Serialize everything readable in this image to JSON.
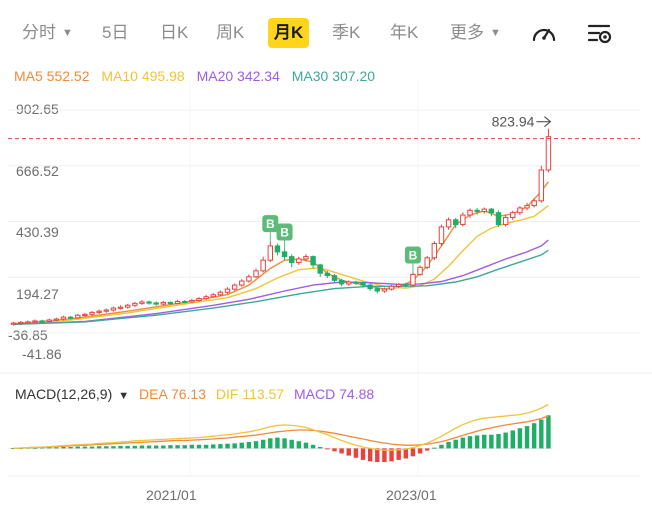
{
  "tabs": [
    {
      "label": "分时",
      "dropdown": true
    },
    {
      "label": "5日"
    },
    {
      "label": "日K"
    },
    {
      "label": "周K"
    },
    {
      "label": "月K",
      "active": true
    },
    {
      "label": "季K"
    },
    {
      "label": "年K"
    },
    {
      "label": "更多",
      "dropdown": true
    }
  ],
  "icons": {
    "speed": "speedometer-icon",
    "settings": "chart-settings-icon"
  },
  "colors": {
    "up": "#e8423f",
    "down": "#1fae67",
    "bg": "#ffffff",
    "ma5": "#f08a3a",
    "ma10": "#f2c33a",
    "ma20": "#a05ce6",
    "ma30": "#3fa79a",
    "dea": "#f08a3a",
    "dif": "#f2c33a",
    "macd": "#a05ce6",
    "ref_line": "#e8423f",
    "marker": "#5dbb7a",
    "accent": "#ffd51c"
  },
  "ma_legend": [
    {
      "key": "ma5",
      "text": "MA5 552.52"
    },
    {
      "key": "ma10",
      "text": "MA10 495.98"
    },
    {
      "key": "ma20",
      "text": "MA20 342.34"
    },
    {
      "key": "ma30",
      "text": "MA30 307.20"
    }
  ],
  "macd_legend": {
    "title": "MACD(12,26,9)",
    "items": [
      {
        "key": "dea",
        "text": "DEA 76.13"
      },
      {
        "key": "dif",
        "text": "DIF 113.57"
      },
      {
        "key": "macd",
        "text": "MACD 74.88"
      }
    ]
  },
  "chart_data": {
    "type": "candlestick",
    "y_tick_labels": [
      "902.65",
      "666.52",
      "430.39",
      "194.27",
      "-36.85",
      "-41.86"
    ],
    "ylim": [
      -36.85,
      902.65
    ],
    "x_tick_labels": [
      "2021/01",
      "2023/01"
    ],
    "high_label": "823.94",
    "high_value": 823.94,
    "marker_label": "B",
    "marker_candles": [
      36,
      38,
      56
    ],
    "candles": [
      {
        "o": 0,
        "c": 5,
        "h": 10,
        "l": -5
      },
      {
        "o": 5,
        "c": 8,
        "h": 14,
        "l": -2
      },
      {
        "o": 8,
        "c": 10,
        "h": 16,
        "l": 2
      },
      {
        "o": 10,
        "c": 14,
        "h": 20,
        "l": 5
      },
      {
        "o": 14,
        "c": 12,
        "h": 19,
        "l": 6
      },
      {
        "o": 12,
        "c": 18,
        "h": 24,
        "l": 8
      },
      {
        "o": 18,
        "c": 22,
        "h": 28,
        "l": 13
      },
      {
        "o": 22,
        "c": 30,
        "h": 36,
        "l": 16
      },
      {
        "o": 30,
        "c": 27,
        "h": 35,
        "l": 20
      },
      {
        "o": 27,
        "c": 38,
        "h": 44,
        "l": 22
      },
      {
        "o": 38,
        "c": 42,
        "h": 48,
        "l": 32
      },
      {
        "o": 42,
        "c": 50,
        "h": 56,
        "l": 36
      },
      {
        "o": 50,
        "c": 55,
        "h": 62,
        "l": 44
      },
      {
        "o": 55,
        "c": 60,
        "h": 66,
        "l": 48
      },
      {
        "o": 60,
        "c": 68,
        "h": 74,
        "l": 54
      },
      {
        "o": 68,
        "c": 72,
        "h": 80,
        "l": 62
      },
      {
        "o": 72,
        "c": 80,
        "h": 86,
        "l": 66
      },
      {
        "o": 80,
        "c": 88,
        "h": 94,
        "l": 72
      },
      {
        "o": 88,
        "c": 94,
        "h": 102,
        "l": 82
      },
      {
        "o": 94,
        "c": 90,
        "h": 100,
        "l": 82
      },
      {
        "o": 90,
        "c": 85,
        "h": 96,
        "l": 78
      },
      {
        "o": 85,
        "c": 92,
        "h": 98,
        "l": 80
      },
      {
        "o": 92,
        "c": 88,
        "h": 96,
        "l": 82
      },
      {
        "o": 88,
        "c": 96,
        "h": 104,
        "l": 84
      },
      {
        "o": 96,
        "c": 94,
        "h": 102,
        "l": 88
      },
      {
        "o": 94,
        "c": 100,
        "h": 108,
        "l": 90
      },
      {
        "o": 100,
        "c": 108,
        "h": 115,
        "l": 94
      },
      {
        "o": 108,
        "c": 116,
        "h": 124,
        "l": 102
      },
      {
        "o": 116,
        "c": 124,
        "h": 132,
        "l": 110
      },
      {
        "o": 124,
        "c": 135,
        "h": 142,
        "l": 118
      },
      {
        "o": 135,
        "c": 148,
        "h": 156,
        "l": 128
      },
      {
        "o": 148,
        "c": 165,
        "h": 172,
        "l": 140
      },
      {
        "o": 165,
        "c": 182,
        "h": 190,
        "l": 158
      },
      {
        "o": 182,
        "c": 200,
        "h": 210,
        "l": 175
      },
      {
        "o": 200,
        "c": 225,
        "h": 235,
        "l": 195
      },
      {
        "o": 225,
        "c": 270,
        "h": 285,
        "l": 218
      },
      {
        "o": 270,
        "c": 330,
        "h": 350,
        "l": 262
      },
      {
        "o": 330,
        "c": 305,
        "h": 340,
        "l": 290
      },
      {
        "o": 305,
        "c": 285,
        "h": 315,
        "l": 270
      },
      {
        "o": 285,
        "c": 260,
        "h": 295,
        "l": 240
      },
      {
        "o": 260,
        "c": 275,
        "h": 285,
        "l": 250
      },
      {
        "o": 275,
        "c": 285,
        "h": 295,
        "l": 265
      },
      {
        "o": 285,
        "c": 250,
        "h": 290,
        "l": 235
      },
      {
        "o": 250,
        "c": 215,
        "h": 255,
        "l": 200
      },
      {
        "o": 215,
        "c": 205,
        "h": 225,
        "l": 195
      },
      {
        "o": 205,
        "c": 185,
        "h": 212,
        "l": 175
      },
      {
        "o": 185,
        "c": 170,
        "h": 192,
        "l": 160
      },
      {
        "o": 170,
        "c": 178,
        "h": 185,
        "l": 162
      },
      {
        "o": 178,
        "c": 175,
        "h": 184,
        "l": 166
      },
      {
        "o": 175,
        "c": 165,
        "h": 180,
        "l": 155
      },
      {
        "o": 165,
        "c": 150,
        "h": 172,
        "l": 140
      },
      {
        "o": 150,
        "c": 140,
        "h": 155,
        "l": 130
      },
      {
        "o": 140,
        "c": 148,
        "h": 155,
        "l": 132
      },
      {
        "o": 148,
        "c": 160,
        "h": 166,
        "l": 142
      },
      {
        "o": 160,
        "c": 168,
        "h": 174,
        "l": 152
      },
      {
        "o": 168,
        "c": 165,
        "h": 175,
        "l": 155
      },
      {
        "o": 165,
        "c": 210,
        "h": 218,
        "l": 160
      },
      {
        "o": 210,
        "c": 240,
        "h": 248,
        "l": 204
      },
      {
        "o": 240,
        "c": 280,
        "h": 288,
        "l": 232
      },
      {
        "o": 280,
        "c": 340,
        "h": 350,
        "l": 270
      },
      {
        "o": 340,
        "c": 410,
        "h": 420,
        "l": 330
      },
      {
        "o": 410,
        "c": 440,
        "h": 450,
        "l": 398
      },
      {
        "o": 440,
        "c": 420,
        "h": 448,
        "l": 405
      },
      {
        "o": 420,
        "c": 460,
        "h": 472,
        "l": 412
      },
      {
        "o": 460,
        "c": 480,
        "h": 488,
        "l": 448
      },
      {
        "o": 480,
        "c": 475,
        "h": 490,
        "l": 462
      },
      {
        "o": 475,
        "c": 485,
        "h": 492,
        "l": 466
      },
      {
        "o": 485,
        "c": 470,
        "h": 490,
        "l": 455
      },
      {
        "o": 470,
        "c": 420,
        "h": 480,
        "l": 410
      },
      {
        "o": 420,
        "c": 450,
        "h": 462,
        "l": 412
      },
      {
        "o": 450,
        "c": 470,
        "h": 478,
        "l": 440
      },
      {
        "o": 470,
        "c": 490,
        "h": 498,
        "l": 460
      },
      {
        "o": 490,
        "c": 500,
        "h": 512,
        "l": 480
      },
      {
        "o": 500,
        "c": 520,
        "h": 530,
        "l": 492
      },
      {
        "o": 520,
        "c": 650,
        "h": 668,
        "l": 512
      },
      {
        "o": 650,
        "c": 790,
        "h": 823.94,
        "l": 640
      }
    ],
    "ma_series": [
      {
        "key": "ma5",
        "values": [
          [
            0,
            2
          ],
          [
            8,
            22
          ],
          [
            16,
            55
          ],
          [
            24,
            92
          ],
          [
            30,
            125
          ],
          [
            33,
            165
          ],
          [
            36,
            235
          ],
          [
            38,
            270
          ],
          [
            40,
            275
          ],
          [
            42,
            262
          ],
          [
            44,
            215
          ],
          [
            46,
            185
          ],
          [
            48,
            172
          ],
          [
            50,
            160
          ],
          [
            52,
            148
          ],
          [
            54,
            155
          ],
          [
            56,
            185
          ],
          [
            58,
            245
          ],
          [
            60,
            330
          ],
          [
            62,
            420
          ],
          [
            64,
            460
          ],
          [
            66,
            478
          ],
          [
            68,
            455
          ],
          [
            70,
            465
          ],
          [
            72,
            495
          ],
          [
            74,
            560
          ],
          [
            75,
            600
          ]
        ]
      },
      {
        "key": "ma10",
        "values": [
          [
            0,
            0
          ],
          [
            8,
            18
          ],
          [
            16,
            48
          ],
          [
            24,
            85
          ],
          [
            30,
            112
          ],
          [
            34,
            150
          ],
          [
            37,
            195
          ],
          [
            40,
            230
          ],
          [
            43,
            238
          ],
          [
            46,
            210
          ],
          [
            49,
            182
          ],
          [
            52,
            160
          ],
          [
            55,
            152
          ],
          [
            57,
            162
          ],
          [
            59,
            190
          ],
          [
            61,
            245
          ],
          [
            63,
            310
          ],
          [
            65,
            370
          ],
          [
            67,
            405
          ],
          [
            69,
            425
          ],
          [
            71,
            438
          ],
          [
            73,
            455
          ],
          [
            75,
            500
          ]
        ]
      },
      {
        "key": "ma20",
        "values": [
          [
            0,
            0
          ],
          [
            10,
            12
          ],
          [
            20,
            45
          ],
          [
            28,
            80
          ],
          [
            33,
            105
          ],
          [
            38,
            140
          ],
          [
            42,
            165
          ],
          [
            46,
            178
          ],
          [
            50,
            175
          ],
          [
            54,
            168
          ],
          [
            57,
            170
          ],
          [
            60,
            180
          ],
          [
            63,
            205
          ],
          [
            66,
            240
          ],
          [
            69,
            275
          ],
          [
            72,
            305
          ],
          [
            74,
            330
          ],
          [
            75,
            355
          ]
        ]
      },
      {
        "key": "ma30",
        "values": [
          [
            0,
            0
          ],
          [
            10,
            10
          ],
          [
            20,
            38
          ],
          [
            28,
            68
          ],
          [
            34,
            95
          ],
          [
            40,
            128
          ],
          [
            45,
            150
          ],
          [
            50,
            160
          ],
          [
            54,
            160
          ],
          [
            58,
            162
          ],
          [
            62,
            178
          ],
          [
            65,
            200
          ],
          [
            68,
            232
          ],
          [
            71,
            262
          ],
          [
            74,
            292
          ],
          [
            75,
            312
          ]
        ]
      }
    ],
    "macd": {
      "ylim": [
        -60,
        140
      ],
      "bars": [
        1,
        1,
        2,
        2,
        3,
        3,
        3,
        4,
        4,
        5,
        5,
        5,
        6,
        6,
        6,
        7,
        7,
        7,
        8,
        8,
        8,
        8,
        9,
        9,
        9,
        10,
        10,
        10,
        11,
        12,
        13,
        14,
        16,
        18,
        20,
        24,
        28,
        30,
        28,
        24,
        20,
        16,
        10,
        4,
        -2,
        -8,
        -14,
        -20,
        -26,
        -32,
        -36,
        -38,
        -38,
        -36,
        -32,
        -28,
        -22,
        -14,
        -6,
        2,
        10,
        18,
        24,
        30,
        34,
        36,
        38,
        38,
        40,
        44,
        50,
        56,
        62,
        70,
        80,
        92
      ],
      "dif": [
        0,
        1,
        2,
        3,
        4,
        5,
        6,
        8,
        9,
        10,
        11,
        12,
        14,
        15,
        16,
        18,
        19,
        21,
        22,
        23,
        24,
        25,
        26,
        27,
        28,
        29,
        30,
        32,
        34,
        36,
        38,
        40,
        43,
        46,
        50,
        55,
        60,
        64,
        65,
        64,
        62,
        58,
        52,
        45,
        38,
        30,
        22,
        15,
        9,
        4,
        0,
        -3,
        -5,
        -5,
        -4,
        -2,
        2,
        8,
        15,
        24,
        34,
        45,
        56,
        66,
        74,
        80,
        84,
        86,
        88,
        90,
        92,
        94,
        98,
        104,
        112,
        122
      ],
      "dea": [
        0,
        1,
        2,
        3,
        3,
        4,
        5,
        6,
        7,
        8,
        9,
        10,
        11,
        12,
        13,
        14,
        15,
        16,
        17,
        18,
        19,
        20,
        21,
        22,
        22,
        23,
        24,
        25,
        26,
        28,
        29,
        31,
        33,
        35,
        37,
        40,
        43,
        46,
        48,
        50,
        51,
        51,
        50,
        48,
        45,
        42,
        38,
        34,
        30,
        26,
        22,
        18,
        15,
        12,
        10,
        9,
        9,
        10,
        12,
        15,
        19,
        24,
        30,
        36,
        42,
        48,
        53,
        57,
        61,
        65,
        68,
        71,
        74,
        78,
        83,
        90
      ]
    }
  }
}
